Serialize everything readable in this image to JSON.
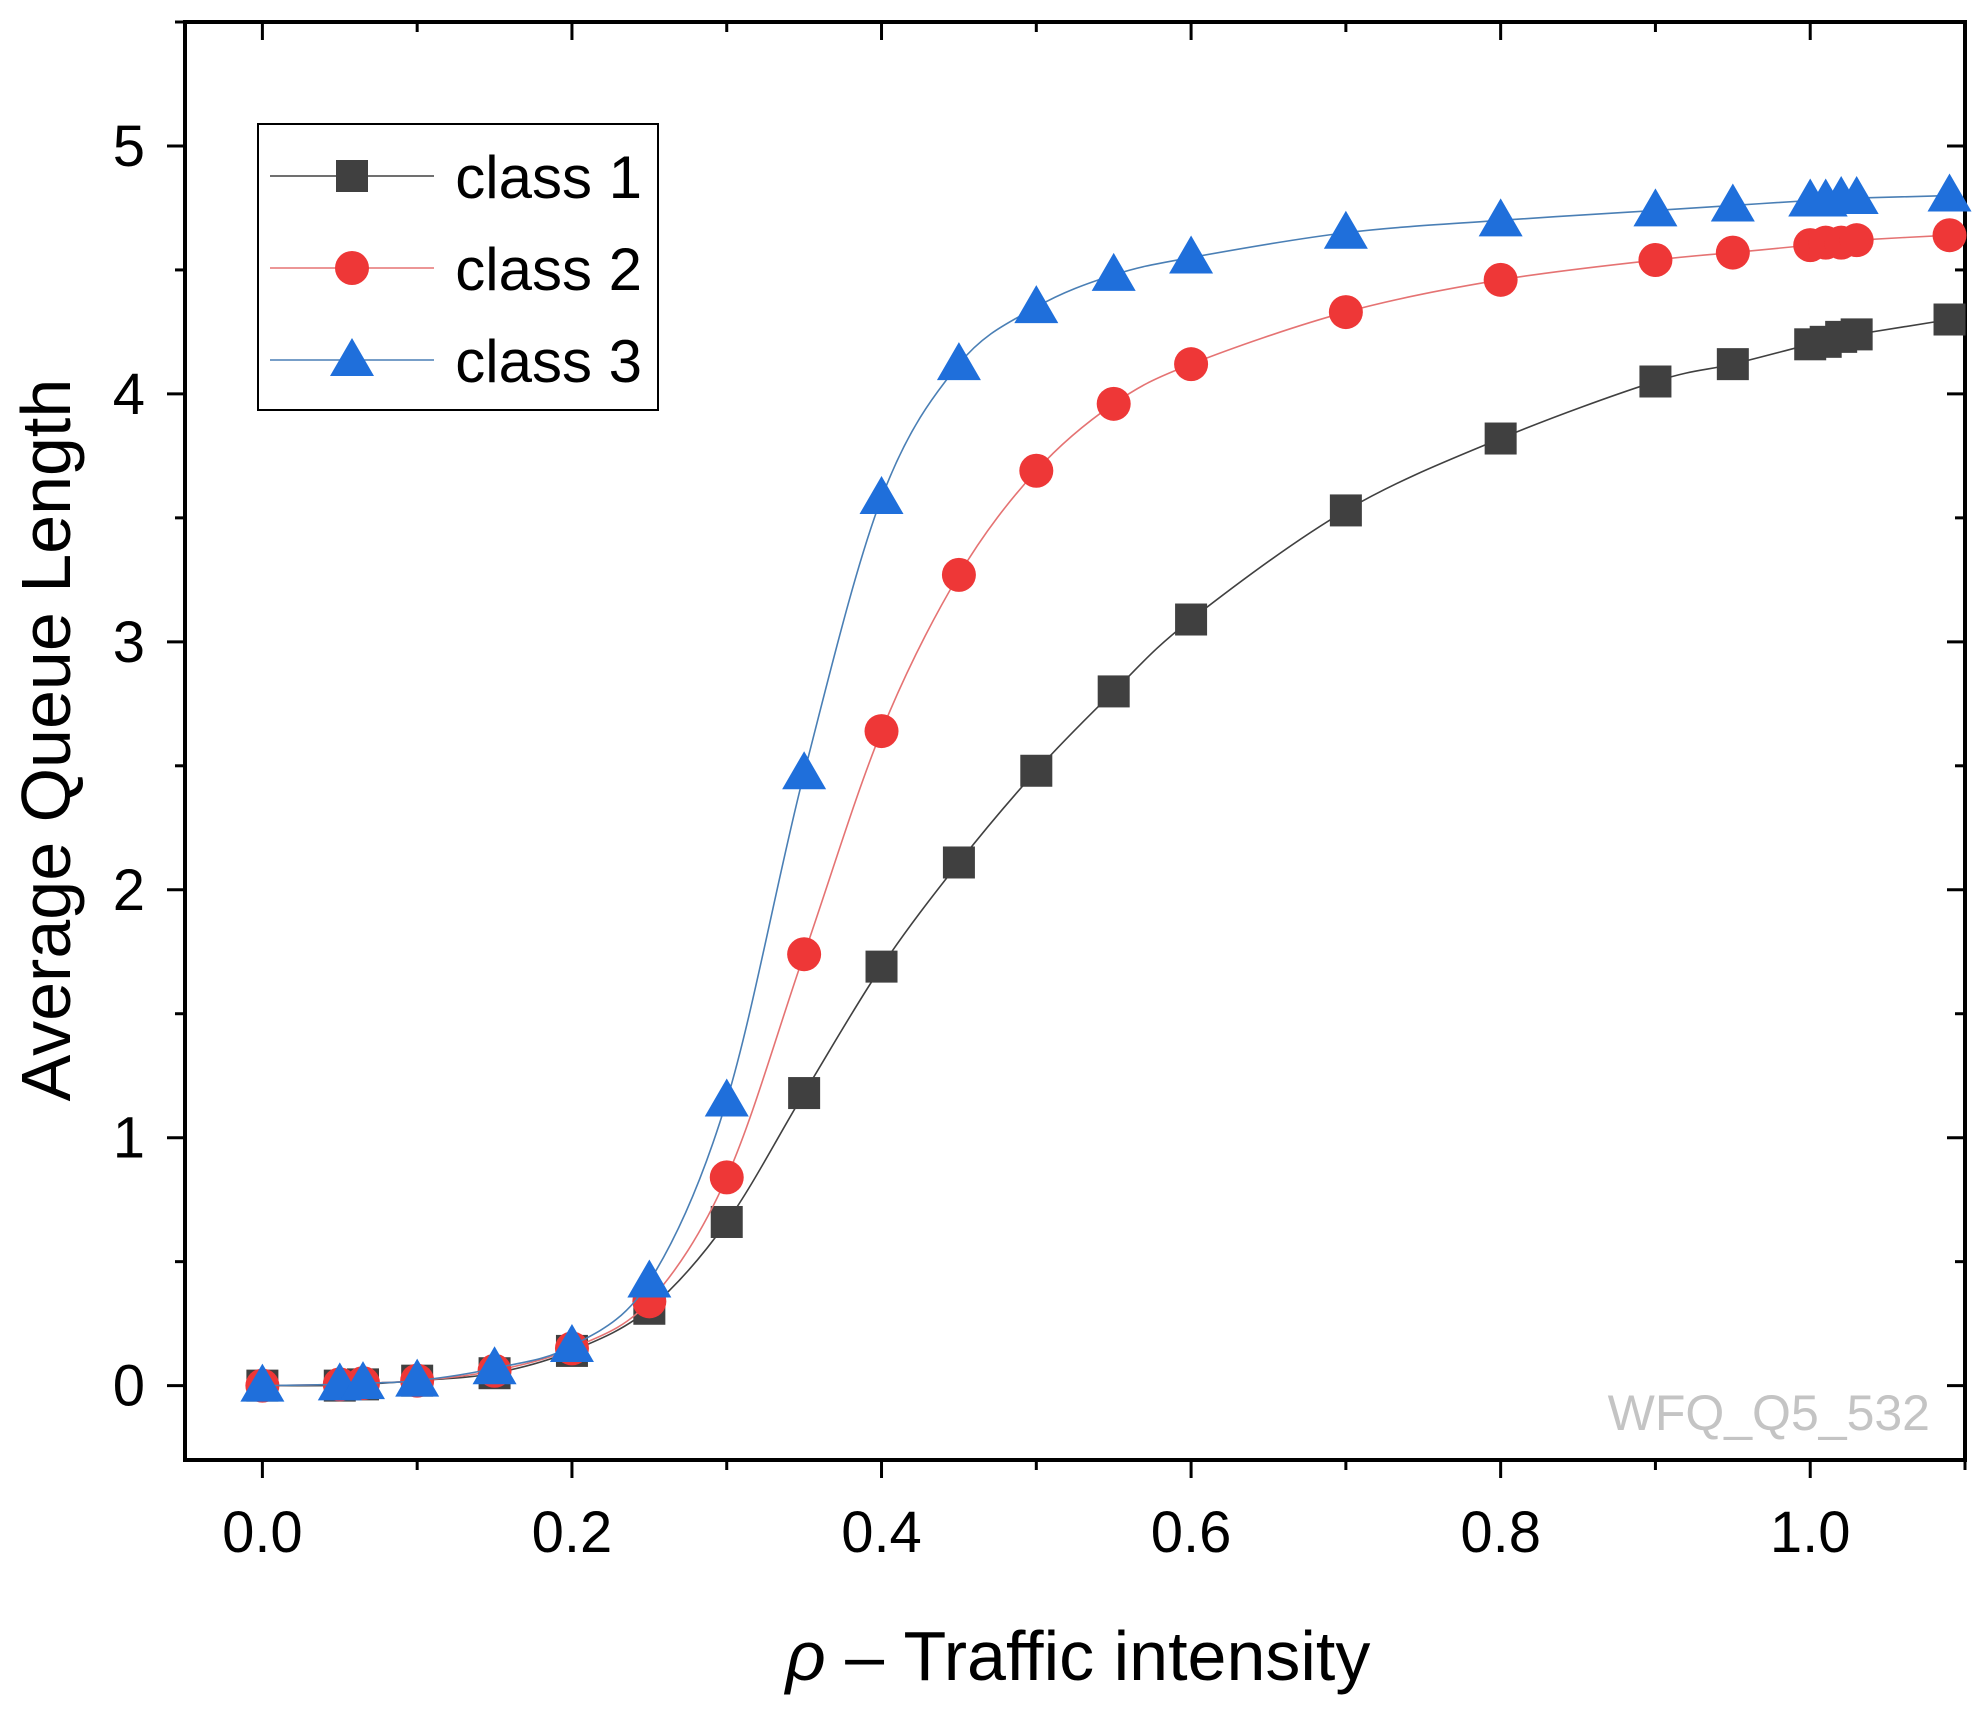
{
  "chart_data": {
    "type": "line",
    "title": "",
    "xlabel": "ρ – Traffic intensity",
    "xlabel_symbol": "ρ",
    "xlabel_rest": " – Traffic intensity",
    "ylabel": "Average Queue Length",
    "xlim": [
      -0.05,
      1.1
    ],
    "ylim": [
      -0.3,
      5.5
    ],
    "x_ticks": [
      0.0,
      0.2,
      0.4,
      0.6,
      0.8,
      1.0
    ],
    "x_tick_labels": [
      "0.0",
      "0.2",
      "0.4",
      "0.6",
      "0.8",
      "1.0"
    ],
    "y_ticks": [
      0,
      1,
      2,
      3,
      4,
      5
    ],
    "y_tick_labels": [
      "0",
      "1",
      "2",
      "3",
      "4",
      "5"
    ],
    "grid": false,
    "legend_position": "top-left",
    "watermark": "WFQ_Q5_532",
    "series": [
      {
        "name": "class 1",
        "marker": "square",
        "color": "#404040",
        "line_color": "#404040",
        "x": [
          0.0,
          0.05,
          0.065,
          0.1,
          0.15,
          0.2,
          0.25,
          0.3,
          0.35,
          0.4,
          0.45,
          0.5,
          0.55,
          0.6,
          0.7,
          0.8,
          0.9,
          0.95,
          1.0,
          1.01,
          1.02,
          1.03,
          1.09
        ],
        "y": [
          0.0,
          0.0,
          0.005,
          0.02,
          0.05,
          0.14,
          0.31,
          0.66,
          1.18,
          1.69,
          2.11,
          2.48,
          2.8,
          3.09,
          3.53,
          3.82,
          4.05,
          4.12,
          4.2,
          4.21,
          4.23,
          4.24,
          4.3
        ]
      },
      {
        "name": "class 2",
        "marker": "circle",
        "color": "#ee3737",
        "line_color": "#e57373",
        "x": [
          0.0,
          0.05,
          0.065,
          0.1,
          0.15,
          0.2,
          0.25,
          0.3,
          0.35,
          0.4,
          0.45,
          0.5,
          0.55,
          0.6,
          0.7,
          0.8,
          0.9,
          0.95,
          1.0,
          1.01,
          1.02,
          1.03,
          1.09
        ],
        "y": [
          0.0,
          0.005,
          0.01,
          0.02,
          0.06,
          0.15,
          0.34,
          0.84,
          1.74,
          2.64,
          3.27,
          3.69,
          3.96,
          4.12,
          4.33,
          4.46,
          4.54,
          4.57,
          4.6,
          4.61,
          4.61,
          4.62,
          4.64
        ]
      },
      {
        "name": "class 3",
        "marker": "triangle",
        "color": "#1f6fdb",
        "line_color": "#4a7fb5",
        "x": [
          0.0,
          0.05,
          0.065,
          0.1,
          0.15,
          0.2,
          0.25,
          0.3,
          0.35,
          0.4,
          0.45,
          0.5,
          0.55,
          0.6,
          0.7,
          0.8,
          0.9,
          0.95,
          1.0,
          1.01,
          1.02,
          1.03,
          1.09
        ],
        "y": [
          0.0,
          0.005,
          0.01,
          0.02,
          0.07,
          0.16,
          0.42,
          1.15,
          2.47,
          3.58,
          4.12,
          4.35,
          4.48,
          4.55,
          4.65,
          4.7,
          4.74,
          4.76,
          4.78,
          4.78,
          4.79,
          4.79,
          4.8
        ]
      }
    ]
  }
}
